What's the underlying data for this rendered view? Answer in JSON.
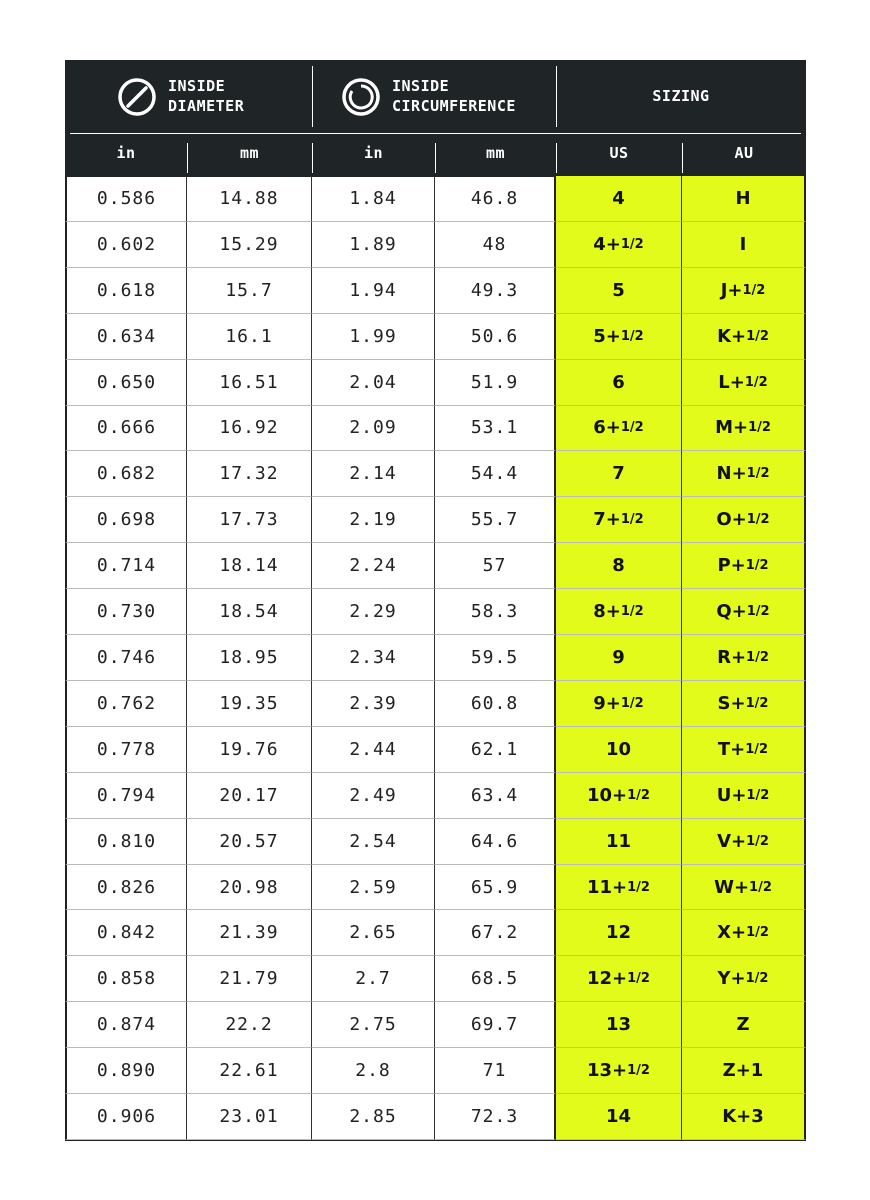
{
  "header": {
    "groups": [
      {
        "lines": [
          "INSIDE",
          "DIAMETER"
        ]
      },
      {
        "lines": [
          "INSIDE",
          "CIRCUMFERENCE"
        ]
      },
      {
        "lines": [
          "SIZING"
        ]
      }
    ],
    "columns": [
      "in",
      "mm",
      "in",
      "mm",
      "US",
      "AU"
    ]
  },
  "table": {
    "rows": [
      [
        "0.586",
        "14.88",
        "1.84",
        "46.8",
        "4",
        "H"
      ],
      [
        "0.602",
        "15.29",
        "1.89",
        "48",
        "4+1/2",
        "I"
      ],
      [
        "0.618",
        "15.7",
        "1.94",
        "49.3",
        "5",
        "J+1/2"
      ],
      [
        "0.634",
        "16.1",
        "1.99",
        "50.6",
        "5+1/2",
        "K+1/2"
      ],
      [
        "0.650",
        "16.51",
        "2.04",
        "51.9",
        "6",
        "L+1/2"
      ],
      [
        "0.666",
        "16.92",
        "2.09",
        "53.1",
        "6+1/2",
        "M+1/2"
      ],
      [
        "0.682",
        "17.32",
        "2.14",
        "54.4",
        "7",
        "N+1/2"
      ],
      [
        "0.698",
        "17.73",
        "2.19",
        "55.7",
        "7+1/2",
        "O+1/2"
      ],
      [
        "0.714",
        "18.14",
        "2.24",
        "57",
        "8",
        "P+1/2"
      ],
      [
        "0.730",
        "18.54",
        "2.29",
        "58.3",
        "8+1/2",
        "Q+1/2"
      ],
      [
        "0.746",
        "18.95",
        "2.34",
        "59.5",
        "9",
        "R+1/2"
      ],
      [
        "0.762",
        "19.35",
        "2.39",
        "60.8",
        "9+1/2",
        "S+1/2"
      ],
      [
        "0.778",
        "19.76",
        "2.44",
        "62.1",
        "10",
        "T+1/2"
      ],
      [
        "0.794",
        "20.17",
        "2.49",
        "63.4",
        "10+1/2",
        "U+1/2"
      ],
      [
        "0.810",
        "20.57",
        "2.54",
        "64.6",
        "11",
        "V+1/2"
      ],
      [
        "0.826",
        "20.98",
        "2.59",
        "65.9",
        "11+1/2",
        "W+1/2"
      ],
      [
        "0.842",
        "21.39",
        "2.65",
        "67.2",
        "12",
        "X+1/2"
      ],
      [
        "0.858",
        "21.79",
        "2.7",
        "68.5",
        "12+1/2",
        "Y+1/2"
      ],
      [
        "0.874",
        "22.2",
        "2.75",
        "69.7",
        "13",
        "Z"
      ],
      [
        "0.890",
        "22.61",
        "2.8",
        "71",
        "13+1/2",
        "Z+1"
      ],
      [
        "0.906",
        "23.01",
        "2.85",
        "72.3",
        "14",
        "K+3"
      ]
    ]
  }
}
